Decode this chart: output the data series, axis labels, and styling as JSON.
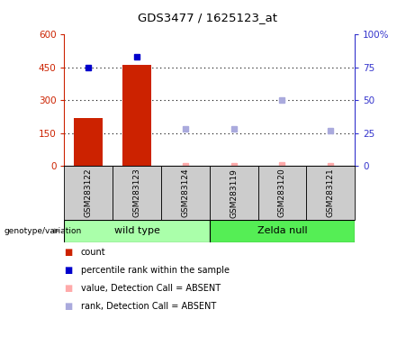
{
  "title": "GDS3477 / 1625123_at",
  "samples": [
    "GSM283122",
    "GSM283123",
    "GSM283124",
    "GSM283119",
    "GSM283120",
    "GSM283121"
  ],
  "bar_values": [
    220,
    460,
    0,
    0,
    0,
    0
  ],
  "bar_color": "#CC2200",
  "percentile_present": [
    75,
    83,
    null,
    null,
    null,
    null
  ],
  "percentile_absent": [
    null,
    null,
    28,
    28,
    50,
    27
  ],
  "value_absent_vals": [
    null,
    null,
    2,
    2,
    5,
    1
  ],
  "ylim_left": [
    0,
    600
  ],
  "ylim_right": [
    0,
    100
  ],
  "yticks_left": [
    0,
    150,
    300,
    450,
    600
  ],
  "yticks_right": [
    0,
    25,
    50,
    75,
    100
  ],
  "yticklabels_left": [
    "0",
    "150",
    "300",
    "450",
    "600"
  ],
  "yticklabels_right": [
    "0",
    "25",
    "50",
    "75",
    "100%"
  ],
  "left_axis_color": "#CC2200",
  "right_axis_color": "#3333CC",
  "legend_items": [
    {
      "label": "count",
      "color": "#CC2200"
    },
    {
      "label": "percentile rank within the sample",
      "color": "#0000CC"
    },
    {
      "label": "value, Detection Call = ABSENT",
      "color": "#FFAAAA"
    },
    {
      "label": "rank, Detection Call = ABSENT",
      "color": "#AAAADD"
    }
  ],
  "group_label": "genotype/variation",
  "wild_type_color": "#AAFFAA",
  "zelda_null_color": "#55EE55",
  "present_dot_color": "#0000CC",
  "absent_rank_color": "#AAAADD",
  "absent_value_color": "#FFAAAA",
  "sample_bg_color": "#CCCCCC",
  "bar_width": 0.6
}
